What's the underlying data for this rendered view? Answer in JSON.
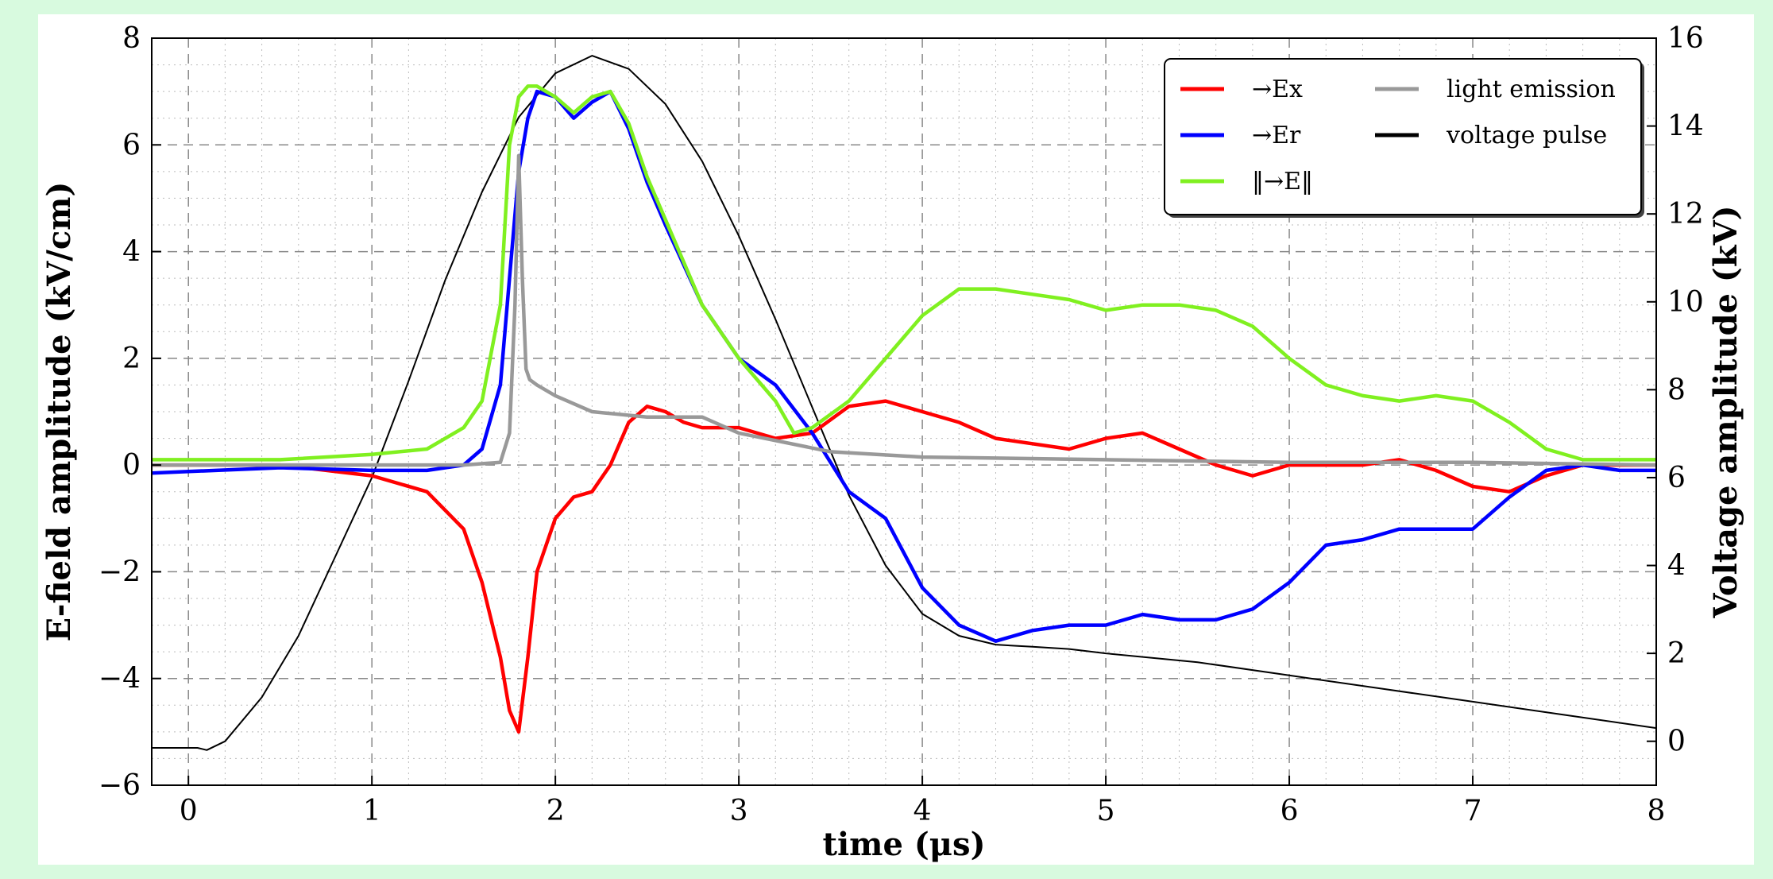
{
  "chart_data": {
    "type": "line",
    "xlabel": "time (μs)",
    "ylabel": "E-field amplitude (kV/cm)",
    "y2label": "Voltage amplitude (kV)",
    "xlim": [
      -0.2,
      8
    ],
    "ylim": [
      -6,
      8
    ],
    "y2lim": [
      -1,
      16
    ],
    "x_ticks": [
      0,
      1,
      2,
      3,
      4,
      5,
      6,
      7,
      8
    ],
    "y_ticks": [
      -6,
      -4,
      -2,
      0,
      2,
      4,
      6,
      8
    ],
    "y2_ticks": [
      0,
      2,
      4,
      6,
      8,
      10,
      12,
      14,
      16
    ],
    "grid": true,
    "legend_position": "top-right",
    "series": [
      {
        "name": "Ex",
        "legend_label": "→Ex",
        "color": "#ff0000",
        "axis": "left",
        "x": [
          -0.2,
          0.5,
          1.0,
          1.3,
          1.5,
          1.6,
          1.7,
          1.75,
          1.8,
          1.85,
          1.9,
          2.0,
          2.1,
          2.2,
          2.3,
          2.4,
          2.5,
          2.6,
          2.7,
          2.8,
          3.0,
          3.2,
          3.4,
          3.6,
          3.8,
          4.0,
          4.2,
          4.4,
          4.6,
          4.8,
          5.0,
          5.2,
          5.4,
          5.6,
          5.8,
          6.0,
          6.2,
          6.4,
          6.6,
          6.8,
          7.0,
          7.2,
          7.4,
          7.6,
          7.8,
          8.0
        ],
        "y": [
          0.0,
          0.0,
          -0.2,
          -0.5,
          -1.2,
          -2.2,
          -3.6,
          -4.6,
          -5.0,
          -3.6,
          -2.0,
          -1.0,
          -0.6,
          -0.5,
          0.0,
          0.8,
          1.1,
          1.0,
          0.8,
          0.7,
          0.7,
          0.5,
          0.6,
          1.1,
          1.2,
          1.0,
          0.8,
          0.5,
          0.4,
          0.3,
          0.5,
          0.6,
          0.3,
          0.0,
          -0.2,
          0.0,
          0.0,
          0.0,
          0.1,
          -0.1,
          -0.4,
          -0.5,
          -0.2,
          0.0,
          0.0,
          0.0
        ]
      },
      {
        "name": "Er",
        "legend_label": "→Er",
        "color": "#0000ff",
        "axis": "left",
        "x": [
          -0.2,
          0.5,
          1.0,
          1.3,
          1.5,
          1.6,
          1.7,
          1.75,
          1.8,
          1.85,
          1.9,
          2.0,
          2.1,
          2.2,
          2.3,
          2.4,
          2.5,
          2.6,
          2.8,
          3.0,
          3.2,
          3.4,
          3.6,
          3.8,
          4.0,
          4.2,
          4.4,
          4.6,
          4.8,
          5.0,
          5.2,
          5.4,
          5.6,
          5.8,
          6.0,
          6.2,
          6.4,
          6.6,
          6.8,
          7.0,
          7.2,
          7.4,
          7.6,
          7.8,
          8.0
        ],
        "y": [
          -0.15,
          -0.05,
          -0.1,
          -0.1,
          0.0,
          0.3,
          1.5,
          3.5,
          5.5,
          6.5,
          7.0,
          6.9,
          6.5,
          6.8,
          7.0,
          6.3,
          5.3,
          4.5,
          3.0,
          2.0,
          1.5,
          0.6,
          -0.5,
          -1.0,
          -2.3,
          -3.0,
          -3.3,
          -3.1,
          -3.0,
          -3.0,
          -2.8,
          -2.9,
          -2.9,
          -2.7,
          -2.2,
          -1.5,
          -1.4,
          -1.2,
          -1.2,
          -1.2,
          -0.6,
          -0.1,
          0.0,
          -0.1,
          -0.1
        ]
      },
      {
        "name": "|E|",
        "legend_label": "‖→E‖",
        "color": "#80f020",
        "axis": "left",
        "x": [
          -0.2,
          0.5,
          1.0,
          1.3,
          1.5,
          1.6,
          1.7,
          1.75,
          1.8,
          1.85,
          1.9,
          2.0,
          2.1,
          2.2,
          2.3,
          2.4,
          2.5,
          2.6,
          2.8,
          3.0,
          3.2,
          3.3,
          3.4,
          3.6,
          3.8,
          4.0,
          4.2,
          4.4,
          4.6,
          4.8,
          5.0,
          5.2,
          5.4,
          5.6,
          5.8,
          6.0,
          6.2,
          6.4,
          6.6,
          6.8,
          7.0,
          7.2,
          7.4,
          7.6,
          7.8,
          8.0
        ],
        "y": [
          0.1,
          0.1,
          0.2,
          0.3,
          0.7,
          1.2,
          3.0,
          6.0,
          6.9,
          7.1,
          7.1,
          6.9,
          6.6,
          6.9,
          7.0,
          6.4,
          5.4,
          4.6,
          3.0,
          2.0,
          1.2,
          0.6,
          0.7,
          1.2,
          2.0,
          2.8,
          3.3,
          3.3,
          3.2,
          3.1,
          2.9,
          3.0,
          3.0,
          2.9,
          2.6,
          2.0,
          1.5,
          1.3,
          1.2,
          1.3,
          1.2,
          0.8,
          0.3,
          0.1,
          0.1,
          0.1
        ]
      },
      {
        "name": "light emission",
        "legend_label": "light emission",
        "color": "#999999",
        "axis": "left",
        "x": [
          -0.2,
          1.5,
          1.7,
          1.75,
          1.78,
          1.8,
          1.82,
          1.84,
          1.86,
          1.9,
          2.0,
          2.2,
          2.5,
          2.8,
          3.0,
          3.5,
          4.0,
          5.0,
          6.0,
          7.0,
          8.0
        ],
        "y": [
          0.0,
          0.0,
          0.05,
          0.6,
          3.0,
          5.8,
          3.5,
          1.8,
          1.6,
          1.5,
          1.3,
          1.0,
          0.9,
          0.9,
          0.6,
          0.25,
          0.15,
          0.1,
          0.05,
          0.05,
          0.0
        ]
      },
      {
        "name": "voltage pulse",
        "legend_label": "voltage pulse",
        "color": "#000000",
        "axis": "right",
        "x": [
          -0.2,
          0.05,
          0.1,
          0.2,
          0.4,
          0.6,
          0.8,
          1.0,
          1.2,
          1.4,
          1.6,
          1.8,
          2.0,
          2.2,
          2.4,
          2.6,
          2.8,
          3.0,
          3.2,
          3.4,
          3.6,
          3.8,
          4.0,
          4.2,
          4.4,
          4.6,
          4.8,
          5.0,
          5.5,
          6.0,
          6.5,
          7.0,
          7.5,
          8.0
        ],
        "y": [
          -0.15,
          -0.15,
          -0.2,
          0.0,
          1.0,
          2.4,
          4.2,
          6.0,
          8.2,
          10.5,
          12.5,
          14.2,
          15.2,
          15.6,
          15.3,
          14.5,
          13.2,
          11.5,
          9.6,
          7.6,
          5.6,
          4.0,
          2.9,
          2.4,
          2.2,
          2.15,
          2.1,
          2.0,
          1.8,
          1.5,
          1.2,
          0.9,
          0.6,
          0.3
        ]
      }
    ]
  }
}
